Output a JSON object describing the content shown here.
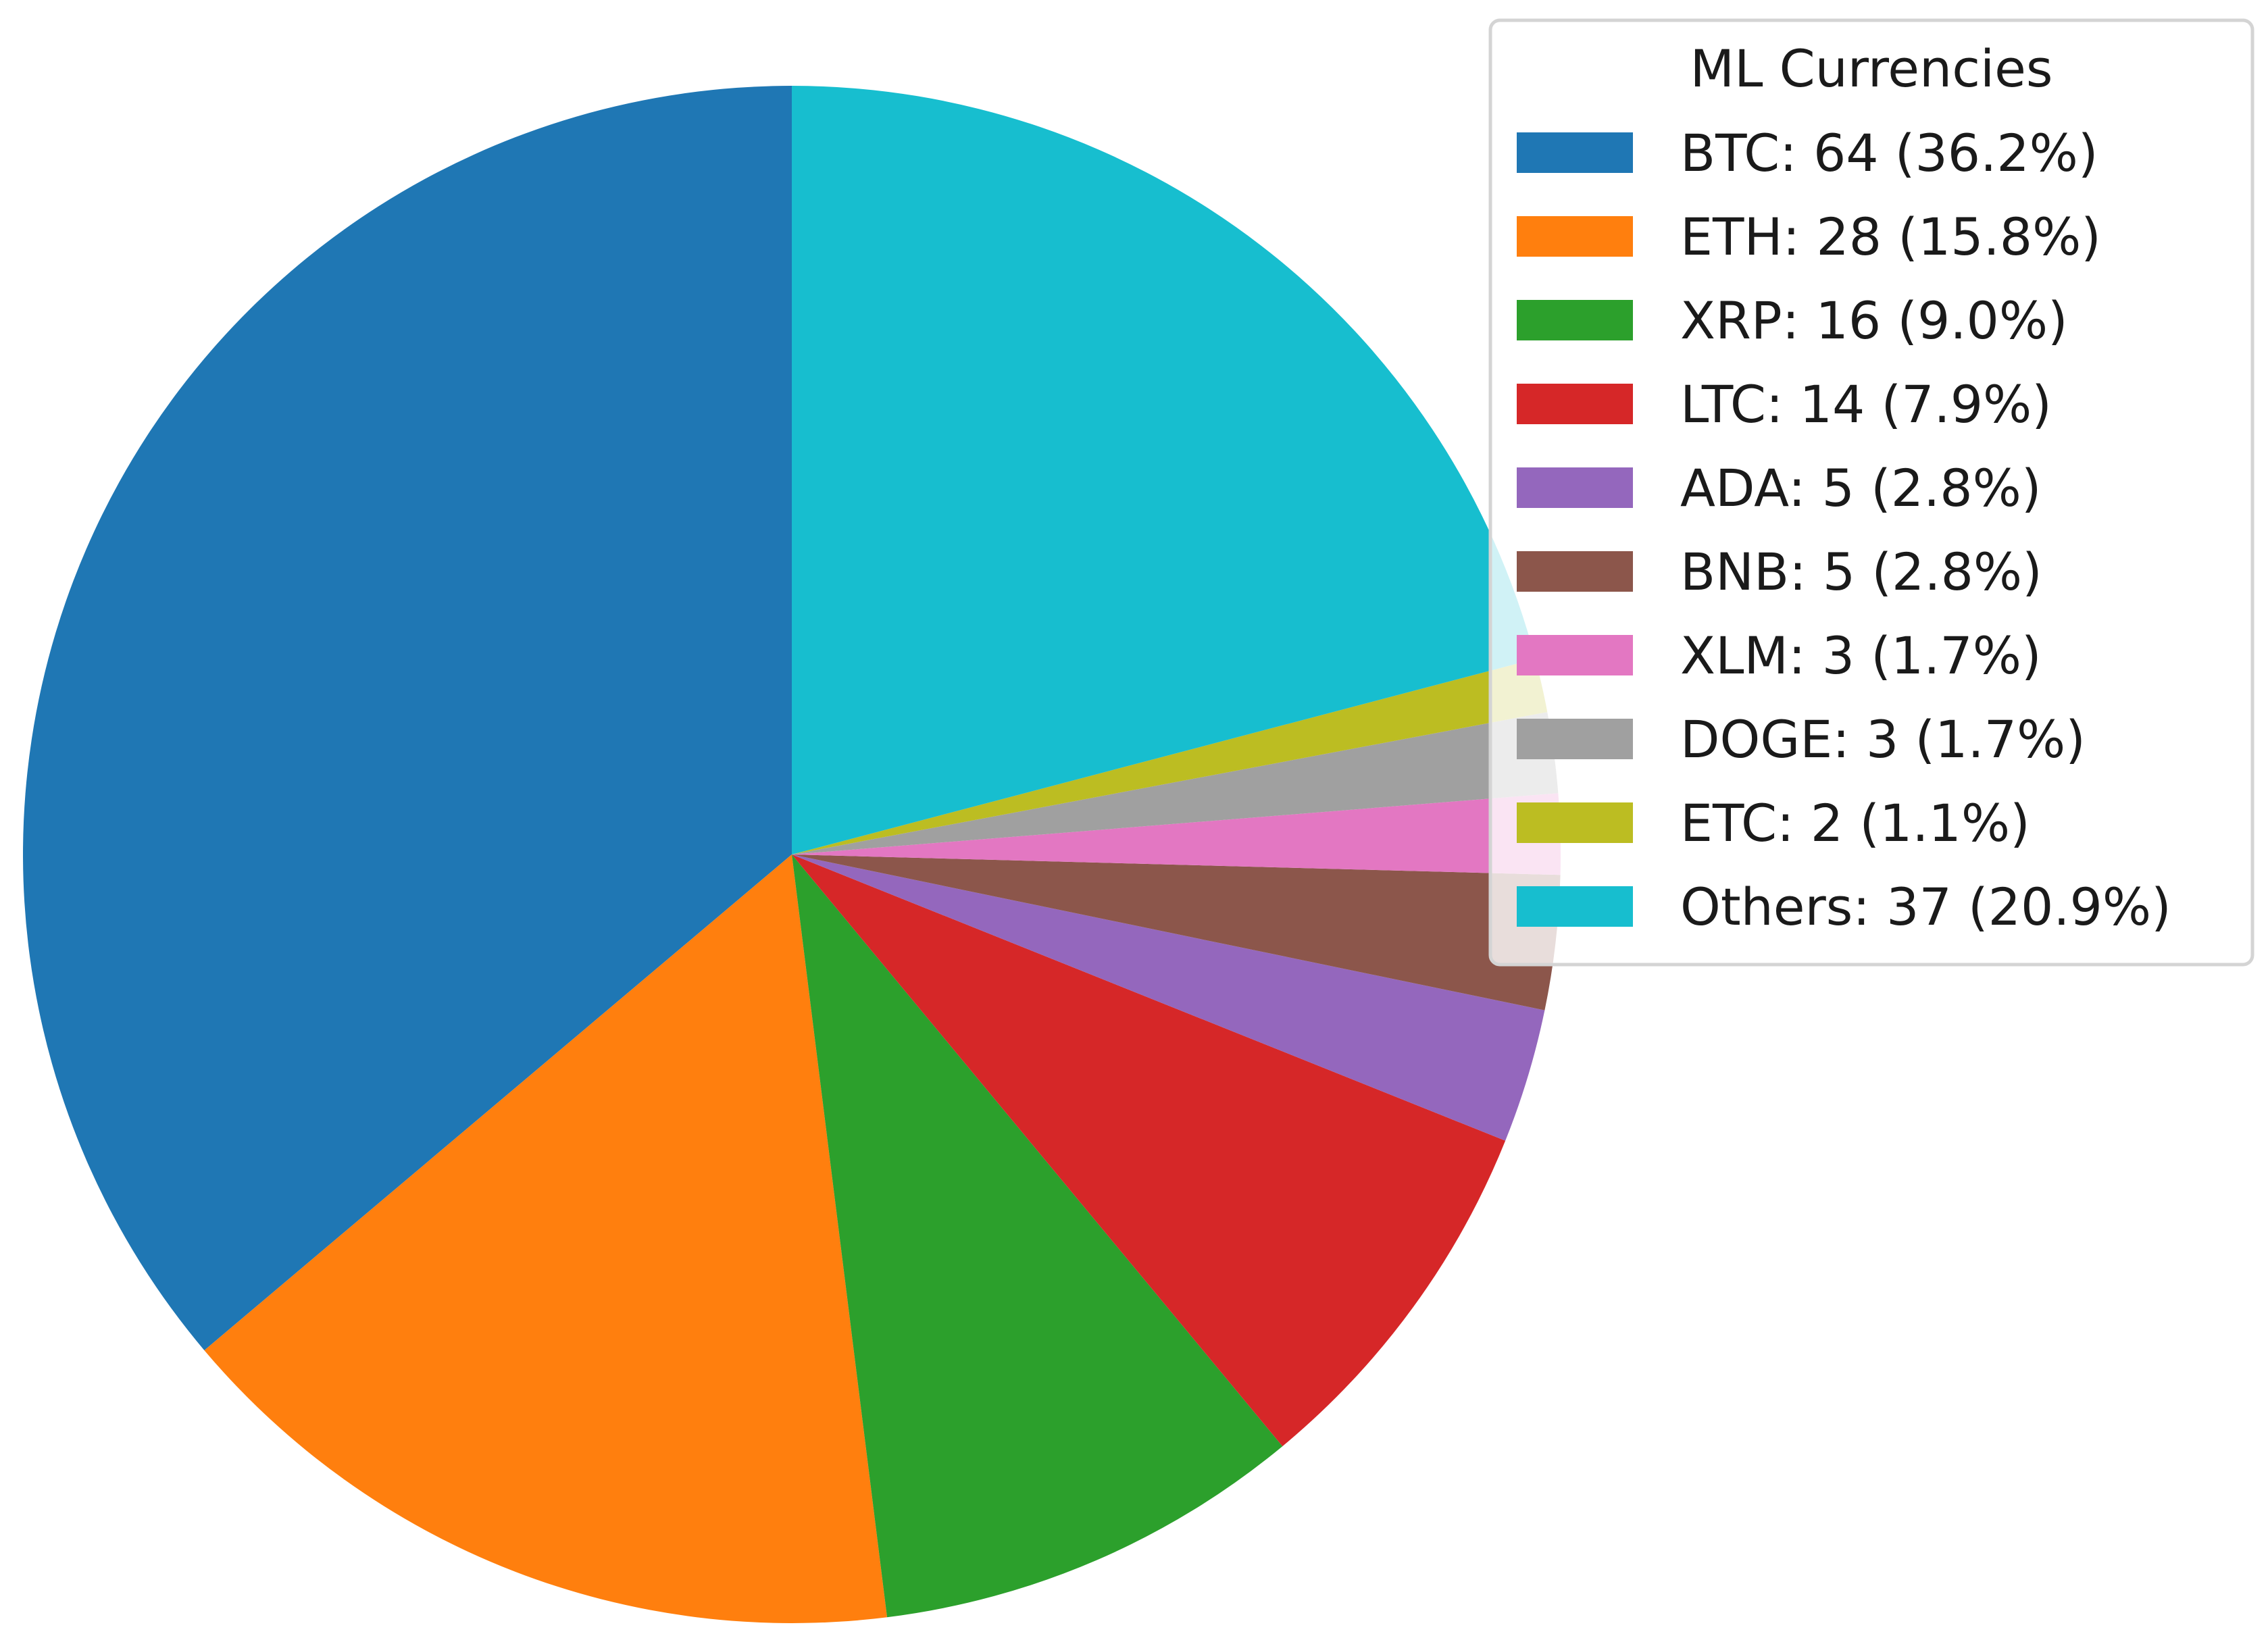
{
  "chart_data": {
    "type": "pie",
    "legend_title": "ML Currencies",
    "legend_placement": "top-right",
    "start_angle_deg": 90,
    "direction": "counterclockwise",
    "slices": [
      {
        "label": "BTC",
        "value": 64,
        "percent": 36.2,
        "color": "#1f77b4",
        "legend_text": "BTC: 64 (36.2%)"
      },
      {
        "label": "ETH",
        "value": 28,
        "percent": 15.8,
        "color": "#ff7f0e",
        "legend_text": "ETH: 28 (15.8%)"
      },
      {
        "label": "XRP",
        "value": 16,
        "percent": 9.0,
        "color": "#2ca02c",
        "legend_text": "XRP: 16 (9.0%)"
      },
      {
        "label": "LTC",
        "value": 14,
        "percent": 7.9,
        "color": "#d62728",
        "legend_text": "LTC: 14 (7.9%)"
      },
      {
        "label": "ADA",
        "value": 5,
        "percent": 2.8,
        "color": "#9467bd",
        "legend_text": "ADA: 5 (2.8%)"
      },
      {
        "label": "BNB",
        "value": 5,
        "percent": 2.8,
        "color": "#8c564b",
        "legend_text": "BNB: 5 (2.8%)"
      },
      {
        "label": "XLM",
        "value": 3,
        "percent": 1.7,
        "color": "#e377c2",
        "legend_text": "XLM: 3 (1.7%)"
      },
      {
        "label": "DOGE",
        "value": 3,
        "percent": 1.7,
        "color": "#a0a0a0",
        "legend_text": "DOGE: 3 (1.7%)"
      },
      {
        "label": "ETC",
        "value": 2,
        "percent": 1.1,
        "color": "#bcbd22",
        "legend_text": "ETC: 2 (1.1%)"
      },
      {
        "label": "Others",
        "value": 37,
        "percent": 20.9,
        "color": "#17becf",
        "legend_text": "Others: 37 (20.9%)"
      }
    ]
  }
}
